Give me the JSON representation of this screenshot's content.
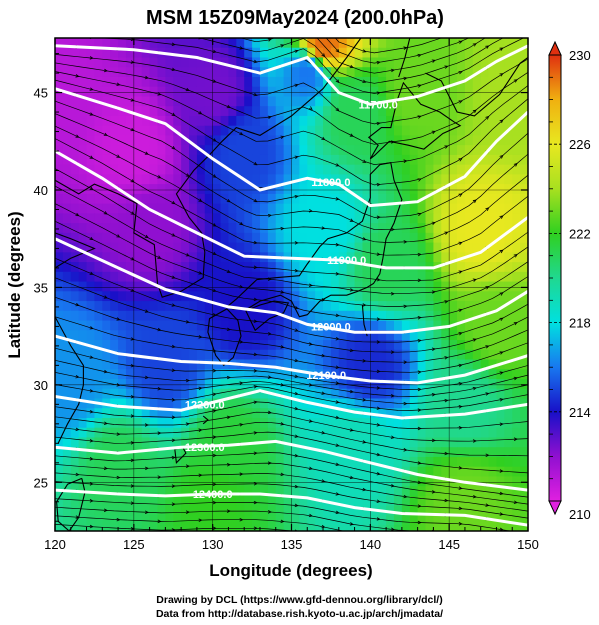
{
  "chart_data": {
    "type": "heatmap",
    "title": "MSM 15Z09May2024 (200.0hPa)",
    "xlabel": "Longitude (degrees)",
    "ylabel": "Latitude  (degrees)",
    "xlim": [
      120,
      150
    ],
    "ylim": [
      22.5,
      47.8
    ],
    "x_ticks": [
      120,
      125,
      130,
      135,
      140,
      145,
      150
    ],
    "y_ticks": [
      25,
      30,
      35,
      40,
      45
    ],
    "colorbar": {
      "range": [
        210,
        230
      ],
      "ticks": [
        210,
        214,
        218,
        222,
        226,
        230
      ],
      "colors": [
        "#e020e0",
        "#9010d0",
        "#1810c8",
        "#1878f0",
        "#00e0e0",
        "#20d890",
        "#30d020",
        "#a8e020",
        "#e8e820",
        "#f0b010",
        "#e03010"
      ]
    },
    "temperature_field": [
      {
        "lon": 120,
        "lat": 45,
        "value": 211
      },
      {
        "lon": 125,
        "lat": 42,
        "value": 210.5
      },
      {
        "lon": 130,
        "lat": 45,
        "value": 212.5
      },
      {
        "lon": 126,
        "lat": 38,
        "value": 212
      },
      {
        "lon": 132,
        "lat": 42,
        "value": 215
      },
      {
        "lon": 136,
        "lat": 46,
        "value": 216
      },
      {
        "lon": 139,
        "lat": 44,
        "value": 221
      },
      {
        "lon": 143,
        "lat": 45,
        "value": 223
      },
      {
        "lon": 147,
        "lat": 38,
        "value": 226
      },
      {
        "lon": 149,
        "lat": 45,
        "value": 224
      },
      {
        "lon": 141,
        "lat": 36,
        "value": 221
      },
      {
        "lon": 137,
        "lat": 38,
        "value": 218
      },
      {
        "lon": 132,
        "lat": 34,
        "value": 214
      },
      {
        "lon": 127,
        "lat": 31,
        "value": 215
      },
      {
        "lon": 121,
        "lat": 30,
        "value": 216.5
      },
      {
        "lon": 124,
        "lat": 26,
        "value": 221
      },
      {
        "lon": 131,
        "lat": 27,
        "value": 221.5
      },
      {
        "lon": 130,
        "lat": 24,
        "value": 222
      },
      {
        "lon": 139,
        "lat": 27,
        "value": 219
      },
      {
        "lon": 140,
        "lat": 31,
        "value": 214.5
      },
      {
        "lon": 146,
        "lat": 29,
        "value": 220
      },
      {
        "lon": 148,
        "lat": 33,
        "value": 223
      },
      {
        "lon": 146,
        "lat": 24,
        "value": 223
      },
      {
        "lon": 137,
        "lat": 47.5,
        "value": 229
      }
    ],
    "contours": [
      {
        "label": "11700.0",
        "points": [
          [
            120,
            47.4
          ],
          [
            125,
            47.2
          ],
          [
            129,
            46.8
          ],
          [
            133,
            46.0
          ],
          [
            136,
            46.8
          ],
          [
            138,
            45.0
          ],
          [
            140,
            44.4
          ],
          [
            143,
            44.8
          ],
          [
            146,
            45.6
          ],
          [
            148,
            46.6
          ],
          [
            150,
            47.4
          ]
        ],
        "label_at": [
          140.5,
          44.4
        ]
      },
      {
        "label": "11800.0",
        "points": [
          [
            120,
            45.2
          ],
          [
            124,
            44.2
          ],
          [
            127,
            43.4
          ],
          [
            130,
            41.6
          ],
          [
            133,
            40.0
          ],
          [
            136,
            40.6
          ],
          [
            138,
            40.3
          ],
          [
            140,
            39.2
          ],
          [
            143,
            39.4
          ],
          [
            146,
            40.7
          ],
          [
            148,
            42.5
          ],
          [
            150,
            44.0
          ]
        ],
        "label_at": [
          137.5,
          40.4
        ]
      },
      {
        "label": "11900.0",
        "points": [
          [
            120,
            42.0
          ],
          [
            123,
            40.6
          ],
          [
            126,
            39.0
          ],
          [
            129,
            37.8
          ],
          [
            132,
            36.6
          ],
          [
            135,
            36.5
          ],
          [
            138,
            36.4
          ],
          [
            141,
            36.0
          ],
          [
            144,
            36.0
          ],
          [
            147,
            36.8
          ],
          [
            150,
            38.6
          ]
        ],
        "label_at": [
          138.5,
          36.4
        ]
      },
      {
        "label": "12000.0",
        "points": [
          [
            120,
            37.5
          ],
          [
            124,
            36.0
          ],
          [
            127,
            34.9
          ],
          [
            131,
            34.0
          ],
          [
            134,
            33.7
          ],
          [
            136,
            33.1
          ],
          [
            139,
            32.7
          ],
          [
            142,
            32.7
          ],
          [
            145,
            33.0
          ],
          [
            148,
            33.8
          ],
          [
            150,
            34.8
          ]
        ],
        "label_at": [
          137.5,
          33.0
        ]
      },
      {
        "label": "12100.0",
        "points": [
          [
            120,
            32.5
          ],
          [
            124,
            31.6
          ],
          [
            128,
            31.2
          ],
          [
            131,
            31.1
          ],
          [
            134,
            30.9
          ],
          [
            137,
            30.5
          ],
          [
            140,
            30.2
          ],
          [
            143,
            30.1
          ],
          [
            146,
            30.5
          ],
          [
            150,
            31.5
          ]
        ],
        "label_at": [
          137.2,
          30.5
        ]
      },
      {
        "label": "12200.0",
        "points": [
          [
            120,
            29.4
          ],
          [
            124,
            28.9
          ],
          [
            128,
            28.7
          ],
          [
            131,
            29.3
          ],
          [
            133,
            29.7
          ],
          [
            136,
            29.1
          ],
          [
            139,
            28.6
          ],
          [
            142,
            28.3
          ],
          [
            146,
            28.5
          ],
          [
            150,
            29.0
          ]
        ],
        "label_at": [
          129.5,
          29.0
        ]
      },
      {
        "label": "12300.0",
        "points": [
          [
            120,
            26.8
          ],
          [
            124,
            26.5
          ],
          [
            128,
            26.8
          ],
          [
            131,
            26.9
          ],
          [
            134,
            27.1
          ],
          [
            137,
            26.6
          ],
          [
            140,
            26.0
          ],
          [
            143,
            25.4
          ],
          [
            146,
            25.0
          ],
          [
            150,
            24.6
          ]
        ],
        "label_at": [
          129.5,
          26.8
        ]
      },
      {
        "label": "12400.0",
        "points": [
          [
            120,
            24.6
          ],
          [
            124,
            24.4
          ],
          [
            127,
            24.3
          ],
          [
            130,
            24.4
          ],
          [
            133,
            24.4
          ],
          [
            136,
            24.2
          ],
          [
            139,
            23.7
          ],
          [
            142,
            23.4
          ],
          [
            146,
            23.3
          ],
          [
            150,
            22.8
          ]
        ],
        "label_at": [
          130.0,
          24.4
        ]
      }
    ],
    "grid": true
  },
  "credits": [
    "Drawing by DCL (https://www.gfd-dennou.org/library/dcl/)",
    "Data from http://database.rish.kyoto-u.ac.jp/arch/jmadata/"
  ]
}
